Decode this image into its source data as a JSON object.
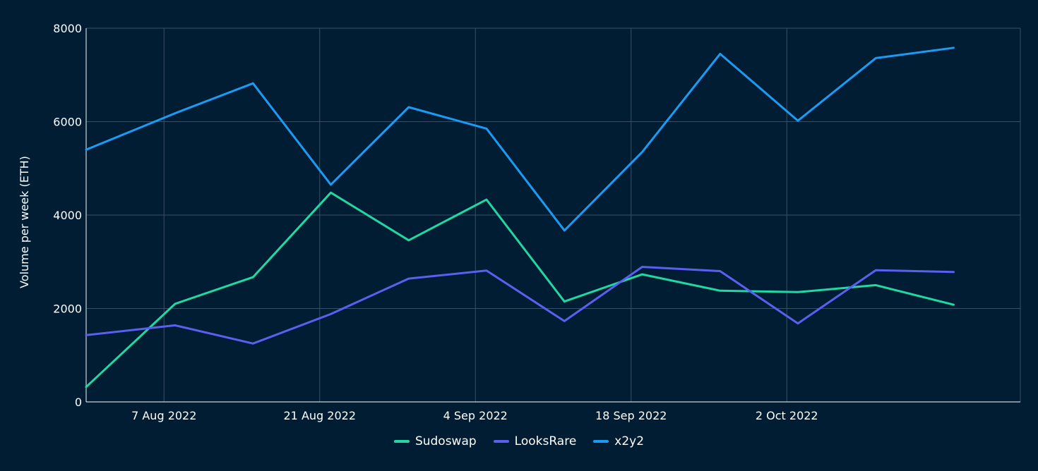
{
  "chart_data": {
    "type": "line",
    "title": "",
    "xlabel": "",
    "ylabel": "Volume per week (ETH)",
    "ylim": [
      0,
      8000
    ],
    "yticks": [
      0,
      2000,
      4000,
      6000,
      8000
    ],
    "xlim": [
      "2022-07-31",
      "2022-10-23"
    ],
    "x_tick_labels": [
      "7 Aug 2022",
      "21 Aug 2022",
      "4 Sep 2022",
      "18 Sep 2022",
      "2 Oct 2022"
    ],
    "x_tick_dates": [
      "2022-08-07",
      "2022-08-21",
      "2022-09-04",
      "2022-09-18",
      "2022-10-02"
    ],
    "x": [
      "2022-07-31",
      "2022-08-08",
      "2022-08-15",
      "2022-08-22",
      "2022-08-29",
      "2022-09-05",
      "2022-09-12",
      "2022-09-19",
      "2022-09-26",
      "2022-10-03",
      "2022-10-10",
      "2022-10-17"
    ],
    "grid": true,
    "legend_position": "bottom-center",
    "series": [
      {
        "name": "Sudoswap",
        "color": "#1fd8a4",
        "values": [
          320,
          2100,
          2670,
          4480,
          3460,
          4330,
          2150,
          2730,
          2380,
          2350,
          2500,
          2080
        ]
      },
      {
        "name": "LooksRare",
        "color": "#5b5ff0",
        "values": [
          1430,
          1640,
          1250,
          1880,
          2640,
          2810,
          1730,
          2890,
          2800,
          1680,
          2820,
          2780
        ]
      },
      {
        "name": "x2y2",
        "color": "#1a9cf5",
        "values": [
          5400,
          6180,
          6820,
          4650,
          6310,
          5850,
          3670,
          5350,
          7450,
          6020,
          7360,
          7580
        ]
      }
    ]
  }
}
